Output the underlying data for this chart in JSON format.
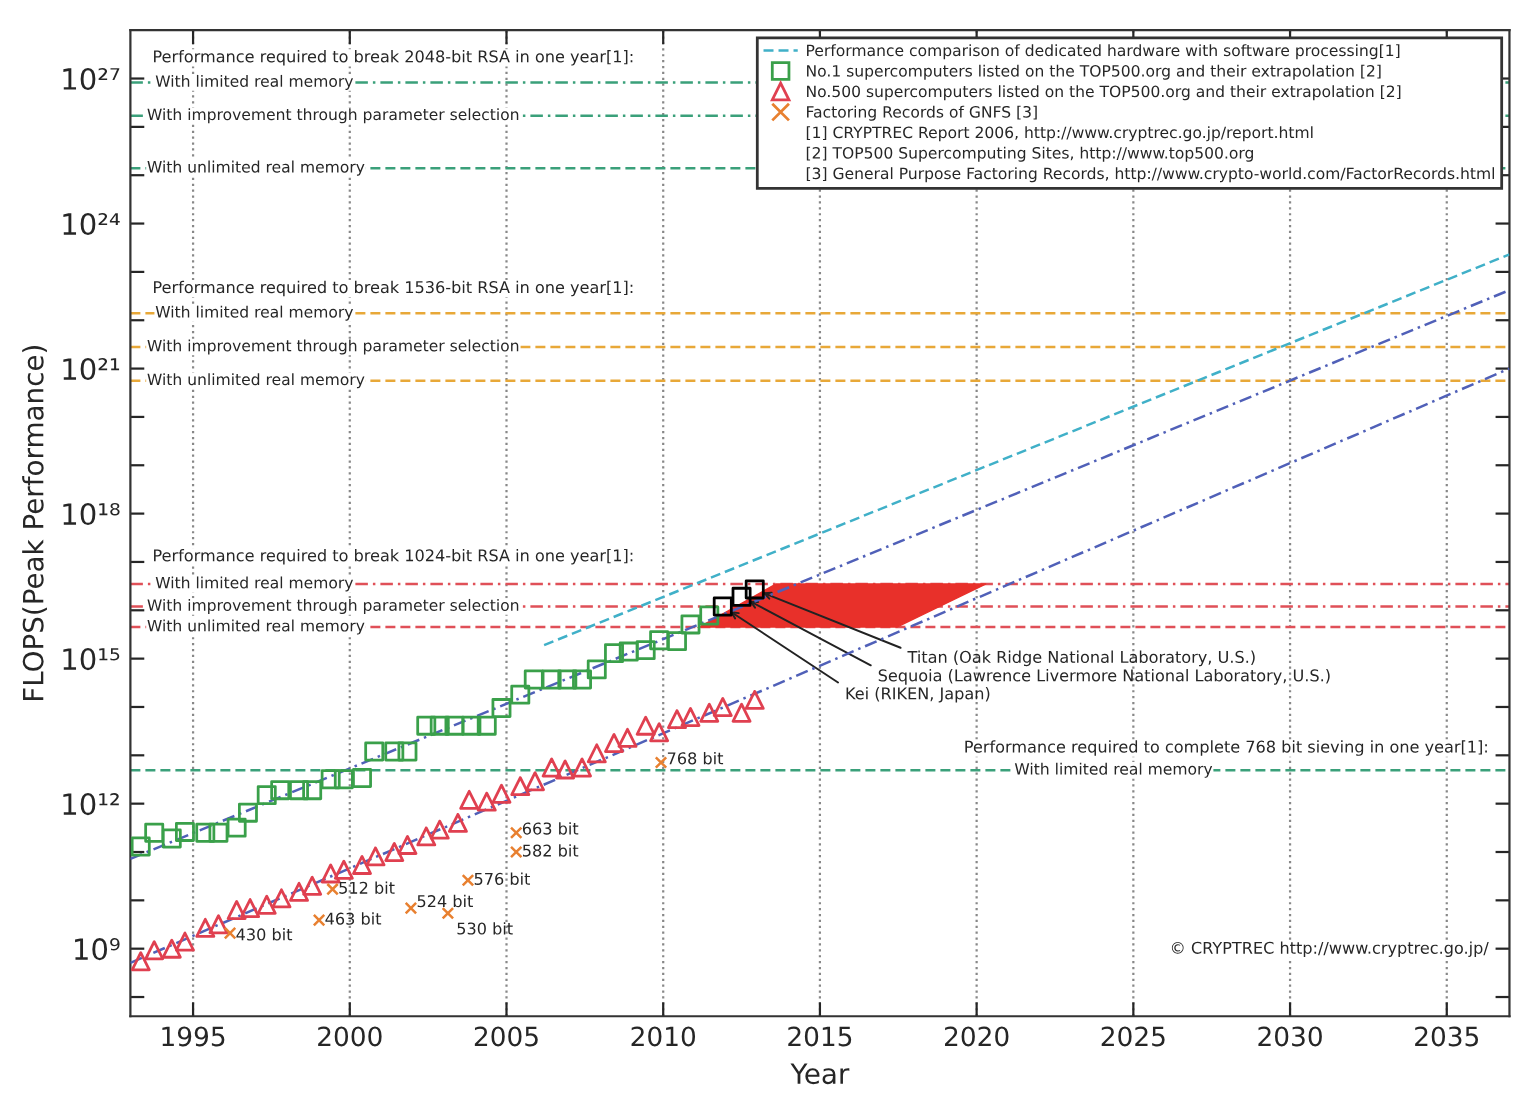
{
  "chart_data": {
    "type": "scatter",
    "xlabel": "Year",
    "ylabel": "FLOPS(Peak Performance)",
    "log": "y",
    "grid": "x",
    "legend": "top right",
    "xlim": [
      1993,
      2037
    ],
    "xticks": [
      1995,
      2000,
      2005,
      2010,
      2015,
      2020,
      2025,
      2030,
      2035
    ],
    "ylim": [
      40000000.0,
      1e+28
    ],
    "yticks": [
      {
        "value": 100000000.0,
        "label": null
      },
      {
        "value": 1000000000.0,
        "label": "10⁹"
      },
      {
        "value": 10000000000.0,
        "label": null
      },
      {
        "value": 100000000000.0,
        "label": null
      },
      {
        "value": 1000000000000.0,
        "label": "10¹²"
      },
      {
        "value": 10000000000000.0,
        "label": null
      },
      {
        "value": 100000000000000.0,
        "label": null
      },
      {
        "value": 1000000000000000.0,
        "label": "10¹⁵"
      },
      {
        "value": 1e+16,
        "label": null
      },
      {
        "value": 1e+17,
        "label": null
      },
      {
        "value": 1e+18,
        "label": "10¹⁸"
      },
      {
        "value": 1e+19,
        "label": null
      },
      {
        "value": 1e+20,
        "label": null
      },
      {
        "value": 1e+21,
        "label": "10²¹"
      },
      {
        "value": 1e+22,
        "label": null
      },
      {
        "value": 1e+23,
        "label": null
      },
      {
        "value": 1e+24,
        "label": "10²⁴"
      },
      {
        "value": 1e+25,
        "label": null
      },
      {
        "value": 1e+26,
        "label": null
      },
      {
        "value": 1e+27,
        "label": "10²⁷"
      }
    ],
    "ref_lines": [
      {
        "axis": "y",
        "value": 8.3e+26,
        "label": "With limited real memory",
        "color": "#3aa07a",
        "line_style": "dashdot"
      },
      {
        "axis": "y",
        "value": 1.7e+26,
        "label": "With improvement through parameter selection",
        "color": "#3aa07a",
        "line_style": "dashdot"
      },
      {
        "axis": "y",
        "value": 1.4e+25,
        "label": "With unlimited real memory",
        "color": "#3aa07a",
        "line_style": "dashed"
      },
      {
        "axis": "y",
        "value": 1.4e+22,
        "label": "With limited real memory",
        "color": "#e8a838",
        "line_style": "dashed"
      },
      {
        "axis": "y",
        "value": 2.8e+21,
        "label": "With improvement through parameter selection",
        "color": "#e8a838",
        "line_style": "dashed"
      },
      {
        "axis": "y",
        "value": 5.6e+20,
        "label": "With unlimited real memory",
        "color": "#e8a838",
        "line_style": "dashed"
      },
      {
        "axis": "y",
        "value": 3.5e+16,
        "label": "With limited real memory",
        "color": "#e05058",
        "line_style": "dashdot"
      },
      {
        "axis": "y",
        "value": 1.2e+16,
        "label": "With improvement through parameter selection",
        "color": "#e05058",
        "line_style": "dashdot"
      },
      {
        "axis": "y",
        "value": 4500000000000000.0,
        "label": "With unlimited real memory",
        "color": "#e05058",
        "line_style": "dashed"
      },
      {
        "axis": "y",
        "value": 4900000000000.0,
        "label": "With limited real memory",
        "color": "#3aa07a",
        "line_style": "dashed"
      }
    ],
    "series": [
      {
        "type": "area",
        "color": "#e8302a",
        "x": [
          2011.15,
          2013.6,
          2020.3,
          2017.46
        ],
        "values": [
          4500000000000000.0,
          3.5e+16,
          3.5e+16,
          4500000000000000.0
        ]
      },
      {
        "type": "line",
        "color": "#5060b8",
        "line_style": "dashdot",
        "x": [
          1993,
          2037
        ],
        "values": [
          72000000000.0,
          4.2e+22
        ]
      },
      {
        "type": "line",
        "color": "#5060b8",
        "line_style": "dashdot",
        "x": [
          1993,
          2037
        ],
        "values": [
          510000000.0,
          1e+21
        ]
      },
      {
        "type": "line",
        "name": "Performance comparison of dedicated hardware with software processing[1]",
        "color": "#40b0c8",
        "line_style": "dashed",
        "x": [
          2006.2,
          2037
        ],
        "values": [
          1900000000000000.0,
          2.3e+23
        ]
      },
      {
        "name": "No.1 supercomputers listed on the TOP500.org and their extrapolation [2]",
        "color": "#3aa04a",
        "marker": "square",
        "x": [
          1993.33,
          1993.76,
          1994.32,
          1994.74,
          1995.39,
          1995.81,
          1996.39,
          1996.75,
          1997.35,
          1997.78,
          1998.38,
          1998.8,
          1999.39,
          1999.81,
          2000.39,
          2000.78,
          2001.42,
          2001.84,
          2002.44,
          2002.87,
          2003.34,
          2003.88,
          2004.37,
          2004.84,
          2005.44,
          2005.87,
          2006.44,
          2006.94,
          2007.41,
          2007.88,
          2008.43,
          2008.9,
          2009.44,
          2009.87,
          2010.44,
          2010.87,
          2011.47
        ],
        "values": [
          130000000000.0,
          250000000000.0,
          190000000000.0,
          260000000000.0,
          250000000000.0,
          250000000000.0,
          320000000000.0,
          650000000000.0,
          1500000000000.0,
          1900000000000.0,
          1900000000000.0,
          1900000000000.0,
          3200000000000.0,
          3200000000000.0,
          3400000000000.0,
          12000000000000.0,
          12000000000000.0,
          12000000000000.0,
          41000000000000.0,
          41000000000000.0,
          41000000000000.0,
          41000000000000.0,
          41000000000000.0,
          95000000000000.0,
          180000000000000.0,
          370000000000000.0,
          370000000000000.0,
          370000000000000.0,
          370000000000000.0,
          600000000000000.0,
          1300000000000000.0,
          1400000000000000.0,
          1500000000000000.0,
          2400000000000000.0,
          2300000000000000.0,
          5100000000000000.0,
          7800000000000000.0
        ]
      },
      {
        "color": "#000000",
        "marker": "square",
        "x": [
          2011.9,
          2012.5,
          2012.92
        ],
        "values": [
          1.2e+16,
          1.9e+16,
          2.7e+16
        ]
      },
      {
        "name": "No.500 supercomputers listed on the TOP500.org and their extrapolation [2]",
        "color": "#e04050",
        "marker": "triangle",
        "x": [
          1993.33,
          1993.76,
          1994.32,
          1994.74,
          1995.39,
          1995.81,
          1996.39,
          1996.82,
          1997.35,
          1997.82,
          1998.38,
          1998.8,
          1999.39,
          1999.81,
          2000.39,
          2000.82,
          2001.42,
          2001.84,
          2002.44,
          2002.87,
          2003.45,
          2003.81,
          2004.37,
          2004.84,
          2005.44,
          2005.91,
          2006.44,
          2006.87,
          2007.41,
          2007.88,
          2008.43,
          2008.86,
          2009.44,
          2009.87,
          2010.44,
          2010.87,
          2011.47,
          2011.9,
          2012.5,
          2012.92
        ],
        "values": [
          550000000.0,
          930000000.0,
          1000000000.0,
          1400000000.0,
          2700000000.0,
          3200000000.0,
          6300000000.0,
          6900000000.0,
          8100000000.0,
          11000000000.0,
          15000000000.0,
          20000000000.0,
          36000000000.0,
          43000000000.0,
          54000000000.0,
          81000000000.0,
          100000000000.0,
          140000000000.0,
          210000000000.0,
          290000000000.0,
          400000000000.0,
          1200000000000.0,
          1100000000000.0,
          1600000000000.0,
          2300000000000.0,
          2900000000000.0,
          5600000000000.0,
          5100000000000.0,
          5600000000000.0,
          11000000000000.0,
          18000000000000.0,
          23000000000000.0,
          41000000000000.0,
          30000000000000.0,
          56000000000000.0,
          62000000000000.0,
          76000000000000.0,
          100000000000000.0,
          76000000000000.0,
          140000000000000.0
        ]
      },
      {
        "name": "Factoring Records of GNFS [3]",
        "color": "#e88030",
        "marker": "cross",
        "x": [
          1996.18,
          1999.02,
          1999.45,
          2001.95,
          2003.13,
          2003.77,
          2005.31,
          2005.31,
          2009.93
        ],
        "values": [
          2100000000.0,
          3900000000.0,
          17000000000.0,
          6900000000.0,
          5400000000.0,
          26000000000.0,
          100000000000.0,
          250000000000.0,
          7100000000000.0
        ]
      }
    ],
    "annotations": [
      "Performance required to break 2048-bit RSA in one year[1]:",
      "Performance required to break 1536-bit RSA in one year[1]:",
      "Performance required to break 1024-bit RSA in one year[1]:",
      "Performance required to complete 768 bit sieving in one year[1]:",
      "© CRYPTREC http://www.cryptrec.go.jp/",
      "[1] CRYPTREC Report 2006, http://www.cryptrec.go.jp/report.html",
      "[2] TOP500 Supercomputing Sites, http://www.top500.org",
      "[3] General Purpose Factoring Records, http://www.crypto-world.com/FactorRecords.html",
      {
        "text": "Kei (RIKEN, Japan)",
        "x": 2011.9,
        "y": 1.2e+16
      },
      {
        "text": "Sequoia (Lawrence Livermore National Laboratory, U.S.)",
        "x": 2012.5,
        "y": 1.9e+16
      },
      {
        "text": "Titan (Oak Ridge National Laboratory, U.S.)",
        "x": 2012.92,
        "y": 2.7e+16
      },
      {
        "text": "430 bit",
        "x": 1996.18,
        "y": 2100000000.0
      },
      {
        "text": "463 bit",
        "x": 1999.02,
        "y": 3900000000.0
      },
      {
        "text": "512 bit",
        "x": 1999.45,
        "y": 17000000000.0
      },
      {
        "text": "524 bit",
        "x": 2001.95,
        "y": 6900000000.0
      },
      {
        "text": "530 bit",
        "x": 2003.13,
        "y": 5400000000.0
      },
      {
        "text": "576 bit",
        "x": 2003.77,
        "y": 26000000000.0
      },
      {
        "text": "582 bit",
        "x": 2005.31,
        "y": 100000000000.0
      },
      {
        "text": "663 bit",
        "x": 2005.31,
        "y": 250000000000.0
      },
      {
        "text": "768 bit",
        "x": 2009.93,
        "y": 7100000000000.0
      }
    ]
  }
}
